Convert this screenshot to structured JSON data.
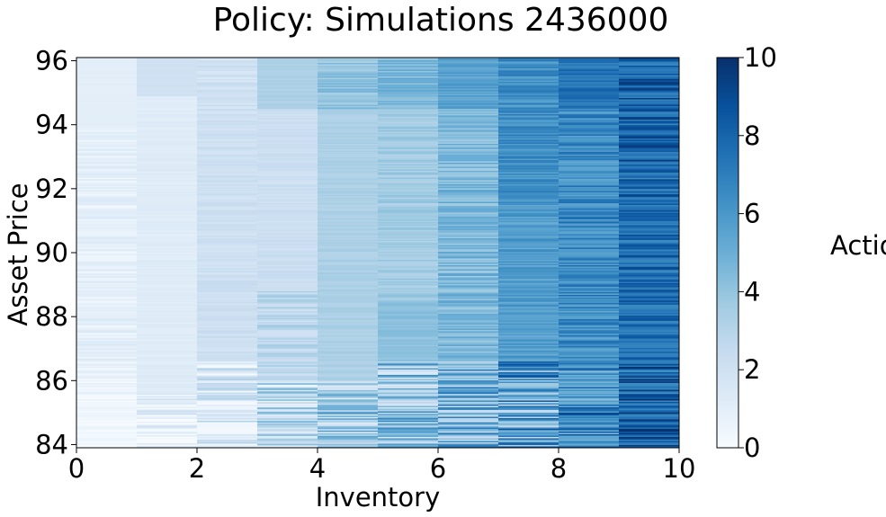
{
  "chart_data": {
    "type": "heatmap",
    "title": "Policy: Simulations 2436000",
    "xlabel": "Inventory",
    "ylabel": "Asset Price",
    "xlim": [
      0,
      10
    ],
    "ylim": [
      83.9,
      96.1
    ],
    "xticks": [
      "0",
      "2",
      "4",
      "6",
      "8",
      "10"
    ],
    "yticks": [
      "84",
      "86",
      "88",
      "90",
      "92",
      "94",
      "96"
    ],
    "colorbar": {
      "label": "Actions",
      "range": [
        0,
        10
      ],
      "ticks": [
        "0",
        "2",
        "4",
        "6",
        "8",
        "10"
      ],
      "colormap": "Blues"
    },
    "columns": [
      {
        "x": [
          0,
          1
        ],
        "segments": [
          {
            "y": [
              83.9,
              85.3
            ],
            "base": 0.3,
            "noise": 0.4
          },
          {
            "y": [
              85.3,
              86.6
            ],
            "base": 0.6,
            "noise": 0.7
          },
          {
            "y": [
              86.6,
              93.9
            ],
            "base": 0.9,
            "noise": 0.6
          },
          {
            "y": [
              93.9,
              96.1
            ],
            "base": 1.0,
            "noise": 0.1
          }
        ]
      },
      {
        "x": [
          1,
          2
        ],
        "segments": [
          {
            "y": [
              83.9,
              85.6
            ],
            "base": 1.0,
            "noise": 1.2
          },
          {
            "y": [
              85.6,
              94.9
            ],
            "base": 1.2,
            "noise": 0.2
          },
          {
            "y": [
              94.9,
              96.1
            ],
            "base": 2.0,
            "noise": 0.1
          }
        ]
      },
      {
        "x": [
          2,
          3
        ],
        "segments": [
          {
            "y": [
              83.9,
              86.6
            ],
            "base": 1.8,
            "noise": 1.6
          },
          {
            "y": [
              86.6,
              93.9
            ],
            "base": 2.1,
            "noise": 0.4
          },
          {
            "y": [
              93.9,
              96.1
            ],
            "base": 2.0,
            "noise": 0.6
          }
        ]
      },
      {
        "x": [
          3,
          4
        ],
        "segments": [
          {
            "y": [
              83.9,
              86.0
            ],
            "base": 3.0,
            "noise": 2.2
          },
          {
            "y": [
              86.0,
              88.8
            ],
            "base": 2.8,
            "noise": 0.9
          },
          {
            "y": [
              88.8,
              94.5
            ],
            "base": 2.2,
            "noise": 0.3
          },
          {
            "y": [
              94.5,
              96.1
            ],
            "base": 3.3,
            "noise": 0.2
          }
        ]
      },
      {
        "x": [
          4,
          5
        ],
        "segments": [
          {
            "y": [
              83.9,
              86.0
            ],
            "base": 3.5,
            "noise": 2.4
          },
          {
            "y": [
              86.0,
              94.5
            ],
            "base": 3.3,
            "noise": 0.3
          },
          {
            "y": [
              94.5,
              96.1
            ],
            "base": 4.0,
            "noise": 0.8
          }
        ]
      },
      {
        "x": [
          5,
          6
        ],
        "segments": [
          {
            "y": [
              83.9,
              86.6
            ],
            "base": 4.2,
            "noise": 2.6
          },
          {
            "y": [
              86.6,
              88.5
            ],
            "base": 4.2,
            "noise": 0.3
          },
          {
            "y": [
              88.5,
              94.5
            ],
            "base": 3.6,
            "noise": 0.6
          },
          {
            "y": [
              94.5,
              96.1
            ],
            "base": 4.6,
            "noise": 0.8
          }
        ]
      },
      {
        "x": [
          6,
          7
        ],
        "segments": [
          {
            "y": [
              83.9,
              86.6
            ],
            "base": 5.0,
            "noise": 2.6
          },
          {
            "y": [
              86.6,
              94.5
            ],
            "base": 4.5,
            "noise": 1.0
          },
          {
            "y": [
              94.5,
              96.1
            ],
            "base": 5.5,
            "noise": 0.6
          }
        ]
      },
      {
        "x": [
          7,
          8
        ],
        "segments": [
          {
            "y": [
              83.9,
              86.6
            ],
            "base": 5.8,
            "noise": 3.0
          },
          {
            "y": [
              86.6,
              91.5
            ],
            "base": 5.8,
            "noise": 0.8
          },
          {
            "y": [
              91.5,
              96.1
            ],
            "base": 6.3,
            "noise": 0.9
          }
        ]
      },
      {
        "x": [
          8,
          9
        ],
        "segments": [
          {
            "y": [
              83.9,
              86.6
            ],
            "base": 7.0,
            "noise": 2.4
          },
          {
            "y": [
              86.6,
              94.5
            ],
            "base": 6.6,
            "noise": 1.2
          },
          {
            "y": [
              94.5,
              96.1
            ],
            "base": 7.4,
            "noise": 0.8
          }
        ]
      },
      {
        "x": [
          9,
          10
        ],
        "segments": [
          {
            "y": [
              83.9,
              86.6
            ],
            "base": 8.3,
            "noise": 1.8
          },
          {
            "y": [
              86.6,
              92.8
            ],
            "base": 7.9,
            "noise": 1.3
          },
          {
            "y": [
              92.8,
              96.1
            ],
            "base": 8.2,
            "noise": 1.5
          }
        ]
      }
    ]
  }
}
